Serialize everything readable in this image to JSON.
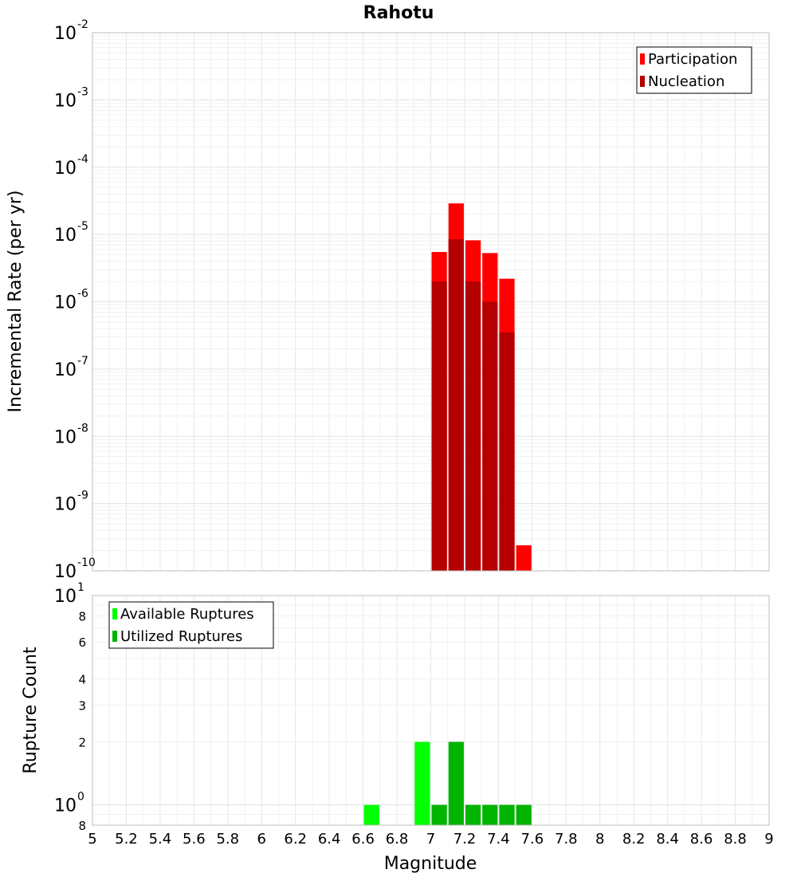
{
  "chart_data": {
    "title": "Rahotu",
    "xlabel": "Magnitude",
    "xlim": [
      5,
      9
    ],
    "x_ticks": [
      "5",
      "5.2",
      "5.4",
      "5.6",
      "5.8",
      "6",
      "6.2",
      "6.4",
      "6.6",
      "6.8",
      "7",
      "7.2",
      "7.4",
      "7.6",
      "7.8",
      "8",
      "8.2",
      "8.4",
      "8.6",
      "8.8",
      "9"
    ],
    "grid": true,
    "panels": [
      {
        "type": "bar",
        "ylabel": "Incremental Rate (per yr)",
        "yscale": "log",
        "ylim": [
          1e-10,
          0.01
        ],
        "y_ticks": [
          {
            "base": "10",
            "exp": "-2",
            "value": 0.01
          },
          {
            "base": "10",
            "exp": "-3",
            "value": 0.001
          },
          {
            "base": "10",
            "exp": "-4",
            "value": 0.0001
          },
          {
            "base": "10",
            "exp": "-5",
            "value": 1e-05
          },
          {
            "base": "10",
            "exp": "-6",
            "value": 1e-06
          },
          {
            "base": "10",
            "exp": "-7",
            "value": 1e-07
          },
          {
            "base": "10",
            "exp": "-8",
            "value": 1e-08
          },
          {
            "base": "10",
            "exp": "-9",
            "value": 1e-09
          },
          {
            "base": "10",
            "exp": "-10",
            "value": 1e-10
          }
        ],
        "legend_position": "top-right",
        "bar_width": 0.1,
        "series": [
          {
            "name": "Participation",
            "color": "#ff0000",
            "x": [
              7.0,
              7.1,
              7.2,
              7.3,
              7.4,
              7.5
            ],
            "values": [
              5.5e-06,
              2.9e-05,
              8.2e-06,
              5.3e-06,
              2.2e-06,
              2.4e-10
            ]
          },
          {
            "name": "Nucleation",
            "color": "#b40000",
            "x": [
              7.0,
              7.1,
              7.2,
              7.3,
              7.4
            ],
            "values": [
              2e-06,
              8.5e-06,
              2e-06,
              1e-06,
              3.5e-07
            ]
          }
        ]
      },
      {
        "type": "bar",
        "ylabel": "Rupture Count",
        "yscale": "log",
        "ylim": [
          0.8,
          10
        ],
        "y_ticks": [
          {
            "base": "10",
            "exp": "1",
            "value": 10
          },
          {
            "base": "8",
            "exp": "",
            "value": 8
          },
          {
            "base": "6",
            "exp": "",
            "value": 6
          },
          {
            "base": "4",
            "exp": "",
            "value": 4
          },
          {
            "base": "3",
            "exp": "",
            "value": 3
          },
          {
            "base": "2",
            "exp": "",
            "value": 2
          },
          {
            "base": "10",
            "exp": "0",
            "value": 1
          },
          {
            "base": "8",
            "exp": "",
            "value": 0.8
          }
        ],
        "legend_position": "top-left",
        "bar_width": 0.1,
        "series": [
          {
            "name": "Available Ruptures",
            "color": "#00ff00",
            "x": [
              6.6,
              6.9
            ],
            "values": [
              1,
              2
            ]
          },
          {
            "name": "Utilized Ruptures",
            "color": "#00b400",
            "x": [
              7.0,
              7.1,
              7.2,
              7.3,
              7.4,
              7.5
            ],
            "values": [
              1,
              2,
              1,
              1,
              1,
              1
            ]
          }
        ]
      }
    ]
  }
}
